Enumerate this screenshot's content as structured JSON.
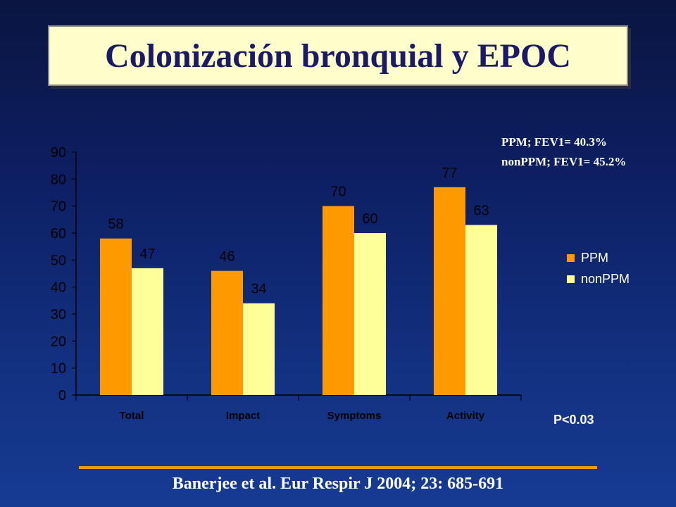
{
  "title": "Colonización bronquial y EPOC",
  "notes": {
    "line1": "PPM; FEV1= 40.3%",
    "line2": "nonPPM; FEV1= 45.2%"
  },
  "p_value": "P<0.03",
  "citation": "Banerjee et al. Eur Respir J 2004; 23: 685-691",
  "colors": {
    "ppm": "#ff9900",
    "nonppm": "#ffff99",
    "divider": "#ff9900",
    "title_text": "#1a1a66",
    "title_bg": "#ffffcc"
  },
  "chart_data": {
    "type": "bar",
    "categories": [
      "Total",
      "Impact",
      "Symptoms",
      "Activity"
    ],
    "series": [
      {
        "name": "PPM",
        "values": [
          58,
          46,
          70,
          77
        ]
      },
      {
        "name": "nonPPM",
        "values": [
          47,
          34,
          60,
          63
        ]
      }
    ],
    "ylim": [
      0,
      90
    ],
    "yticks": [
      0,
      10,
      20,
      30,
      40,
      50,
      60,
      70,
      80,
      90
    ],
    "xlabel": "",
    "ylabel": "",
    "grid": false,
    "legend_position": "right"
  }
}
